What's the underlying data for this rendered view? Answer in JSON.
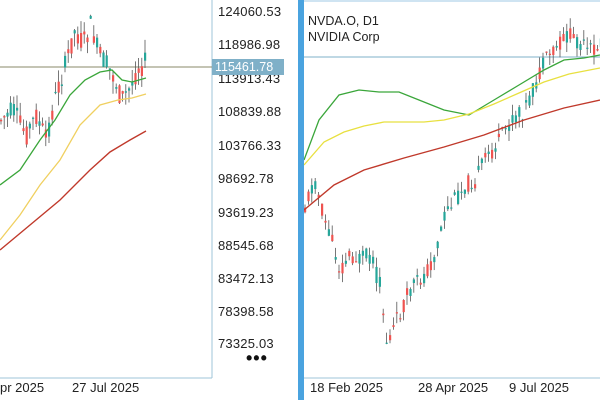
{
  "left_chart": {
    "price_scale": [
      "124060.53",
      "118986.98",
      "113913.43",
      "108839.88",
      "103766.33",
      "98692.78",
      "93619.23",
      "88545.68",
      "83472.13",
      "78398.58",
      "73325.03"
    ],
    "current_price": "115461.78",
    "date_labels": [
      "pr 2025",
      "27 Jul 2025"
    ],
    "more_label": "•••",
    "colors": {
      "up": "#26a69a",
      "down": "#ef5350",
      "ma_fast": "#3aa63a",
      "ma_mid": "#f0d060",
      "ma_slow": "#c0392b",
      "price_line": "#8a8a6a"
    }
  },
  "right_chart": {
    "symbol": "NVDA.O, D1",
    "company": "NVIDIA Corp",
    "date_labels": [
      "18 Feb 2025",
      "28 Apr 2025",
      "9 Jul 2025"
    ],
    "colors": {
      "up": "#26a69a",
      "down": "#ef5350",
      "ma_fast": "#3aa63a",
      "ma_mid": "#e8e040",
      "ma_slow": "#c0392b",
      "price_line": "#7fb0c8"
    }
  },
  "divider_color": "#4aa3df"
}
